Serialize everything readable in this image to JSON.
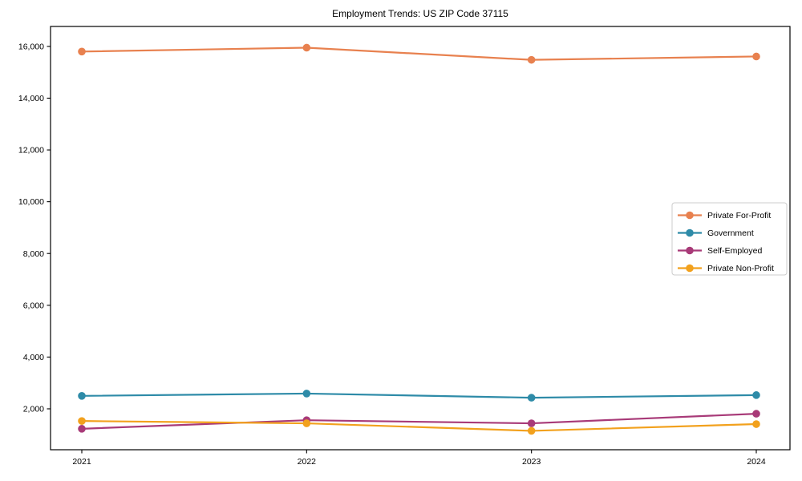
{
  "title": "Employment Trends: US ZIP Code 37115",
  "figure": {
    "background": "#ffffff",
    "frame_color": "#000000",
    "legend_border_color": "#cccccc",
    "legend_background": "#ffffff"
  },
  "chart_data": {
    "type": "line",
    "title": "Employment Trends: US ZIP Code 37115",
    "xlabel": "",
    "ylabel": "",
    "categories": [
      "2021",
      "2022",
      "2023",
      "2024"
    ],
    "series": [
      {
        "name": "Private For-Profit",
        "color": "#e8814f",
        "values": [
          15800,
          15950,
          15480,
          15610
        ]
      },
      {
        "name": "Government",
        "color": "#2e8ba8",
        "values": [
          2500,
          2590,
          2430,
          2530
        ]
      },
      {
        "name": "Self-Employed",
        "color": "#a83a78",
        "values": [
          1230,
          1560,
          1440,
          1810
        ]
      },
      {
        "name": "Private Non-Profit",
        "color": "#f2a11d",
        "values": [
          1530,
          1440,
          1150,
          1410
        ]
      }
    ],
    "ylim": [
      420,
      16770
    ],
    "yticks": [
      2000,
      4000,
      6000,
      8000,
      10000,
      12000,
      14000,
      16000
    ],
    "ytick_labels": [
      "2,000",
      "4,000",
      "6,000",
      "8,000",
      "10,000",
      "12,000",
      "14,000",
      "16,000"
    ],
    "grid": false,
    "legend_position": "center-right",
    "marker": "circle"
  }
}
